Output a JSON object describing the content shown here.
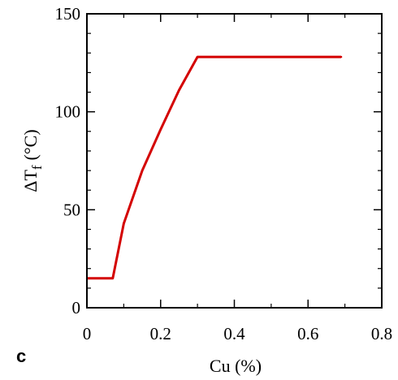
{
  "panel_label": "c",
  "chart_data": {
    "type": "line",
    "xlabel": "Cu (%)",
    "ylabel_main": "ΔT",
    "ylabel_sub": "f",
    "ylabel_unit": "(°C)",
    "xlim": [
      0,
      0.8
    ],
    "ylim": [
      0,
      150
    ],
    "xticks": [
      0,
      0.2,
      0.4,
      0.6,
      0.8
    ],
    "xtick_labels": [
      "0",
      "0.2",
      "0.4",
      "0.6",
      "0.8"
    ],
    "yticks": [
      0,
      50,
      100,
      150
    ],
    "ytick_labels": [
      "0",
      "50",
      "100",
      "150"
    ],
    "grid": false,
    "series": [
      {
        "color": "#d40000",
        "x": [
          0,
          0.07,
          0.1,
          0.15,
          0.2,
          0.25,
          0.3,
          0.69
        ],
        "y": [
          15,
          15,
          43,
          70,
          91,
          111,
          128,
          128
        ]
      }
    ]
  }
}
